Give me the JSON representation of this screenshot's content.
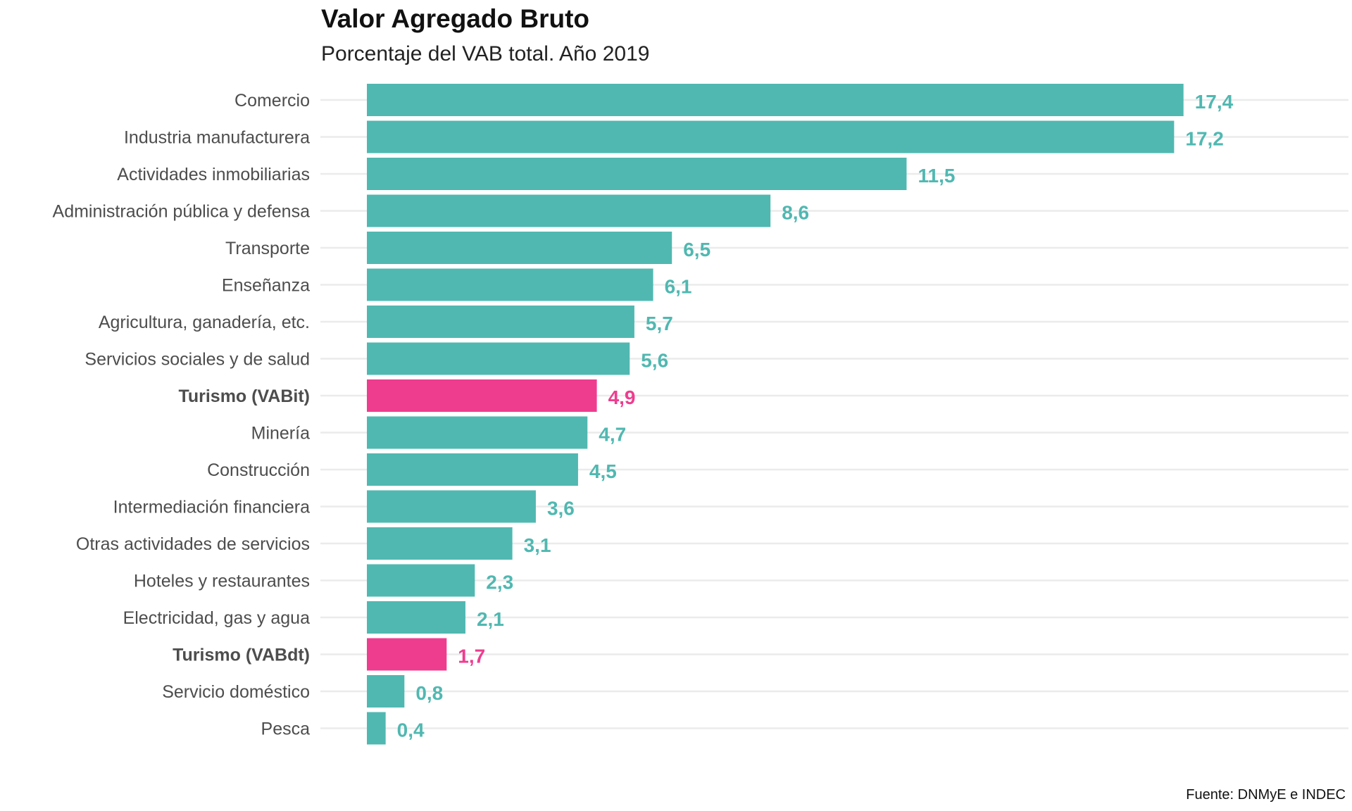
{
  "chart_data": {
    "type": "bar",
    "orientation": "horizontal",
    "title": "Valor Agregado Bruto",
    "subtitle": "Porcentaje del VAB total. Año 2019",
    "caption": "Fuente: DNMyE e INDEC",
    "categories": [
      "Comercio",
      "Industria manufacturera",
      "Actividades inmobiliarias",
      "Administración pública y defensa",
      "Transporte",
      "Enseñanza",
      "Agricultura, ganadería, etc.",
      "Servicios sociales y de salud",
      "Turismo (VABit)",
      "Minería",
      "Construcción",
      "Intermediación financiera",
      "Otras actividades de servicios",
      "Hoteles y restaurantes",
      "Electricidad, gas y agua",
      "Turismo (VABdt)",
      "Servicio doméstico",
      "Pesca"
    ],
    "values": [
      17.4,
      17.2,
      11.5,
      8.6,
      6.5,
      6.1,
      5.7,
      5.6,
      4.9,
      4.7,
      4.5,
      3.6,
      3.1,
      2.3,
      2.1,
      1.7,
      0.8,
      0.4
    ],
    "value_labels": [
      "17,4",
      "17,2",
      "11,5",
      "8,6",
      "6,5",
      "6,1",
      "5,7",
      "5,6",
      "4,9",
      "4,7",
      "4,5",
      "3,6",
      "3,1",
      "2,3",
      "2,1",
      "1,7",
      "0,8",
      "0,4"
    ],
    "highlighted": [
      "Turismo (VABit)",
      "Turismo (VABdt)"
    ],
    "xlim": [
      0,
      20
    ],
    "x_axis_visible": false,
    "grid": "horizontal",
    "colors": {
      "default": "#50b8b1",
      "highlight": "#ee3d8f",
      "grid": "#ebebeb"
    }
  }
}
